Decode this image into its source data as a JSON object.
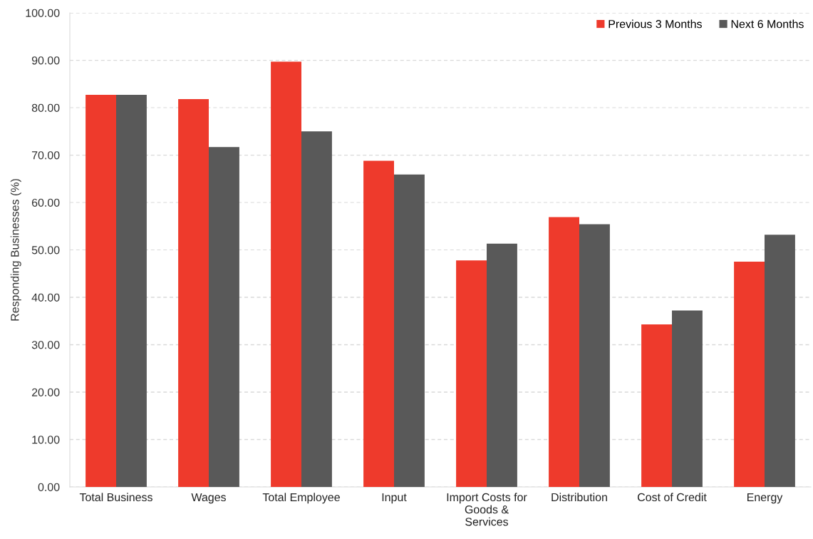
{
  "chart_data": {
    "type": "bar",
    "ylabel": "Responding Businesses (%)",
    "categories": [
      "Total Business",
      "Wages",
      "Total Employee",
      "Input",
      "Import Costs for\nGoods &\nServices",
      "Distribution",
      "Cost of Credit",
      "Energy"
    ],
    "series": [
      {
        "name": "Previous 3 Months",
        "color": "#ee3a2c",
        "values": [
          82.7,
          81.8,
          89.7,
          68.8,
          47.8,
          56.9,
          34.3,
          47.5
        ]
      },
      {
        "name": "Next 6 Months",
        "color": "#595959",
        "values": [
          82.7,
          71.7,
          75.0,
          65.9,
          51.3,
          55.4,
          37.2,
          53.2
        ]
      }
    ],
    "ylim": [
      0,
      100
    ],
    "yticks": [
      {
        "value": 0,
        "label": "0.00"
      },
      {
        "value": 10,
        "label": "10.00"
      },
      {
        "value": 20,
        "label": "20.00"
      },
      {
        "value": 30,
        "label": "30.00"
      },
      {
        "value": 40,
        "label": "40.00"
      },
      {
        "value": 50,
        "label": "50.00"
      },
      {
        "value": 60,
        "label": "60.00"
      },
      {
        "value": 70,
        "label": "70.00"
      },
      {
        "value": 80,
        "label": "80.00"
      },
      {
        "value": 90,
        "label": "90.00"
      },
      {
        "value": 100,
        "label": "100.00"
      }
    ],
    "grid": "y",
    "legend": "top right"
  }
}
